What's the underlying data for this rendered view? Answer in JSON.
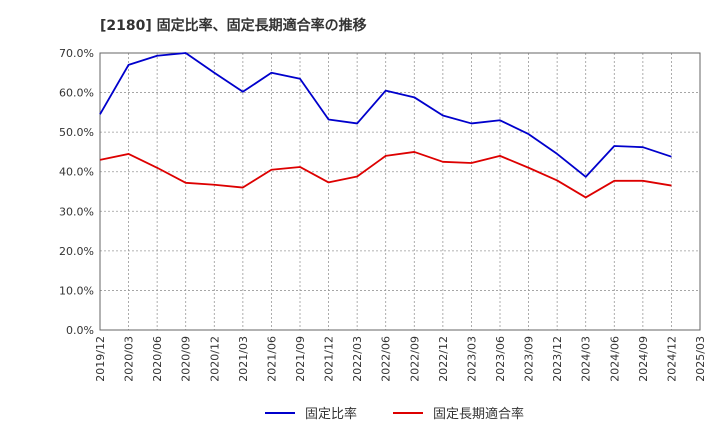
{
  "chart_data": {
    "type": "line",
    "title": "[2180]  固定比率、固定長期適合率の推移",
    "xlabel": "",
    "ylabel": "",
    "ylim": [
      0,
      70
    ],
    "yticks": [
      "0.0%",
      "10.0%",
      "20.0%",
      "30.0%",
      "40.0%",
      "50.0%",
      "60.0%",
      "70.0%"
    ],
    "categories": [
      "2019/12",
      "2020/03",
      "2020/06",
      "2020/09",
      "2020/12",
      "2021/03",
      "2021/06",
      "2021/09",
      "2021/12",
      "2022/03",
      "2022/06",
      "2022/09",
      "2022/12",
      "2023/03",
      "2023/06",
      "2023/09",
      "2023/12",
      "2024/03",
      "2024/06",
      "2024/09",
      "2024/12",
      "2025/03"
    ],
    "series": [
      {
        "name": "固定比率",
        "color": "#0000cc",
        "values": [
          54.5,
          67.0,
          69.3,
          70.0,
          65.0,
          60.2,
          65.0,
          63.5,
          53.2,
          52.2,
          60.5,
          58.8,
          54.2,
          52.2,
          53.0,
          49.5,
          44.5,
          38.7,
          46.5,
          46.2,
          43.8,
          null
        ]
      },
      {
        "name": "固定長期適合率",
        "color": "#dd0000",
        "values": [
          43.0,
          44.5,
          41.0,
          37.2,
          36.7,
          36.0,
          40.5,
          41.2,
          37.3,
          38.8,
          44.0,
          45.0,
          42.5,
          42.2,
          44.0,
          41.0,
          37.8,
          33.5,
          37.7,
          37.7,
          36.5,
          null
        ]
      }
    ],
    "legend": "bottom"
  }
}
